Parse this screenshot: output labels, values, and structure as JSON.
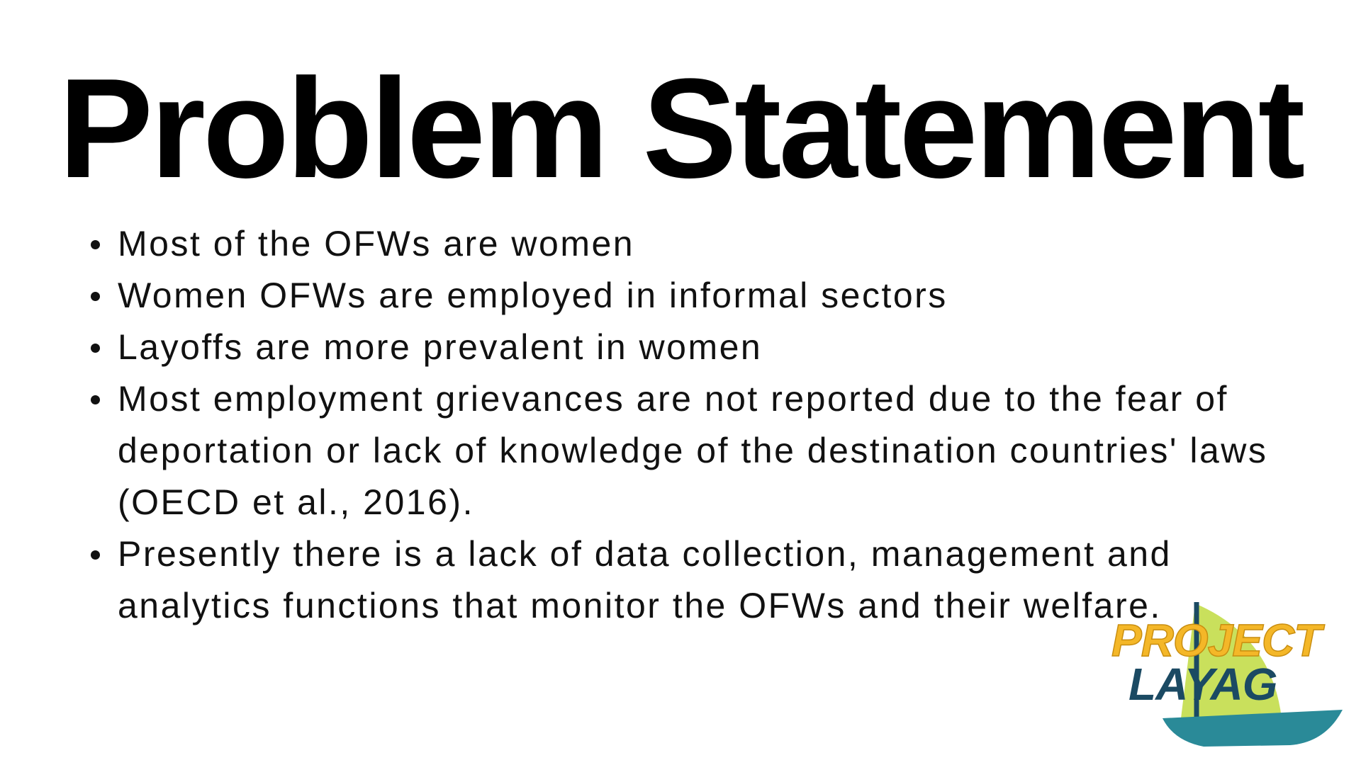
{
  "slide": {
    "title": "Problem Statement",
    "bullets": [
      "Most of the OFWs are women",
      "Women OFWs are employed in informal sectors",
      "Layoffs are more prevalent in women",
      "Most employment grievances are not reported due to the fear of deportation or lack of knowledge of the destination countries' laws (OECD et al., 2016).",
      "Presently there is a lack of data collection, management and analytics functions that monitor the OFWs and their welfare."
    ]
  },
  "logo": {
    "line1": "PROJECT",
    "line2": "LAYAG",
    "colors": {
      "text_top": "#f4b728",
      "text_bottom": "#1b4a63",
      "sail": "#c9e05c",
      "hull": "#2a8a98",
      "mast": "#1b4a63"
    }
  }
}
